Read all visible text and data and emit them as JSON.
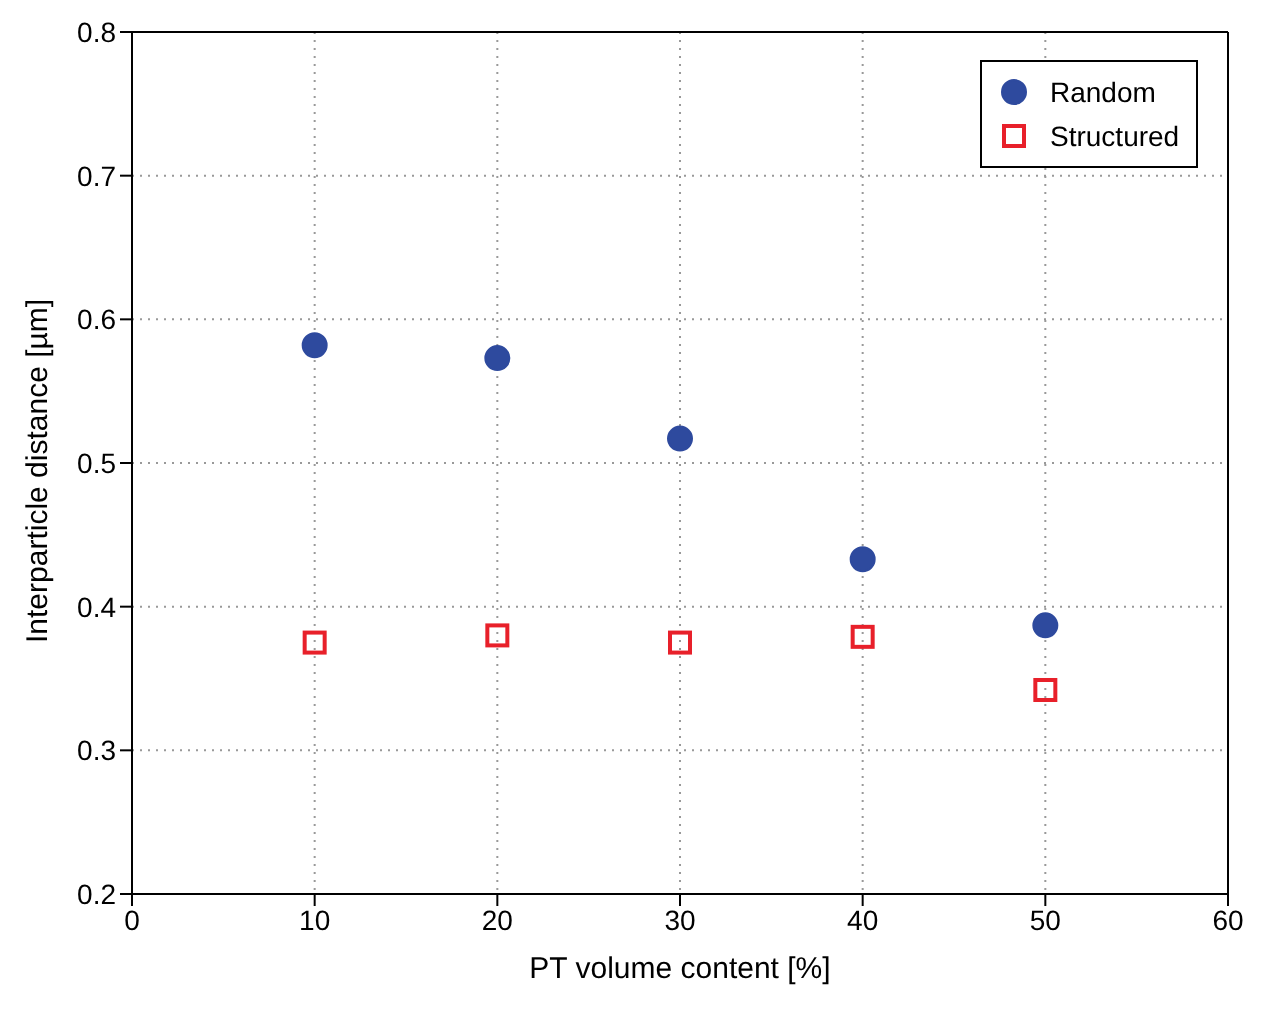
{
  "chart_data": {
    "type": "scatter",
    "xlabel": "PT volume content [%]",
    "ylabel": "Interparticle distance [µm]",
    "x": [
      10,
      20,
      30,
      40,
      50
    ],
    "series": [
      {
        "name": "Random",
        "color": "#2e4a9e",
        "marker": "circle",
        "values": [
          0.582,
          0.573,
          0.517,
          0.433,
          0.387
        ]
      },
      {
        "name": "Structured",
        "color": "#e8202a",
        "marker": "square",
        "values": [
          0.375,
          0.38,
          0.375,
          0.379,
          0.342
        ]
      }
    ],
    "xlim": [
      0,
      60
    ],
    "xticks": [
      0,
      10,
      20,
      30,
      40,
      50,
      60
    ],
    "ylim": [
      0.2,
      0.8
    ],
    "yticks": [
      0.2,
      0.3,
      0.4,
      0.5,
      0.6,
      0.7,
      0.8
    ],
    "grid": true,
    "legend": "top right"
  }
}
